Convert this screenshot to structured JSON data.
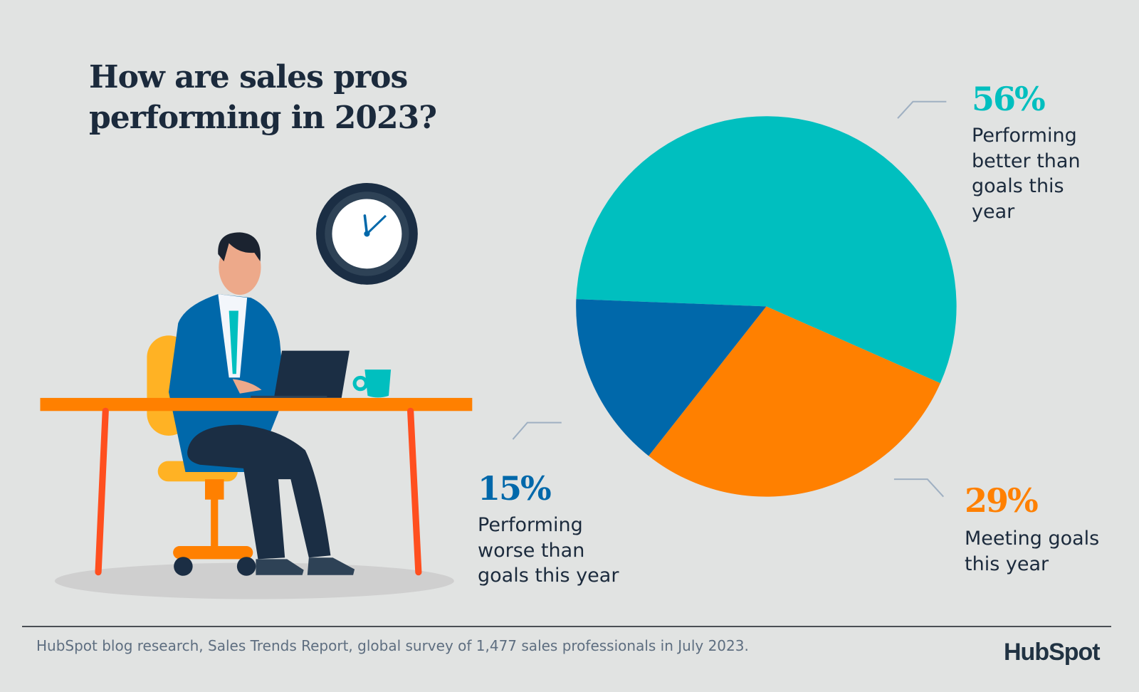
{
  "title": {
    "line1": "How are sales pros",
    "line2": "performing in 2023?"
  },
  "chart_data": {
    "type": "pie",
    "title": "How are sales pros performing in 2023?",
    "slices": [
      {
        "label": "Performing better than goals this year",
        "value": 56,
        "display": "56%",
        "color": "#00BFBF",
        "lines": [
          "Performing",
          "better than",
          "goals this",
          "year"
        ]
      },
      {
        "label": "Meeting goals this year",
        "value": 29,
        "display": "29%",
        "color": "#FF8000",
        "lines": [
          "Meeting goals",
          "this year"
        ]
      },
      {
        "label": "Performing worse than goals this year",
        "value": 15,
        "display": "15%",
        "color": "#0068AA",
        "lines": [
          "Performing",
          "worse than",
          "goals this year"
        ]
      }
    ]
  },
  "footer": {
    "source": "HubSpot blog research, Sales Trends Report, global survey of 1,477 sales professionals in July 2023."
  },
  "logo": {
    "text": "HubSpot"
  },
  "colors": {
    "background": "#E1E3E2",
    "navy": "#1B2A3C",
    "teal": "#00BFBF",
    "orange": "#FF8000",
    "blue": "#0068AA"
  }
}
